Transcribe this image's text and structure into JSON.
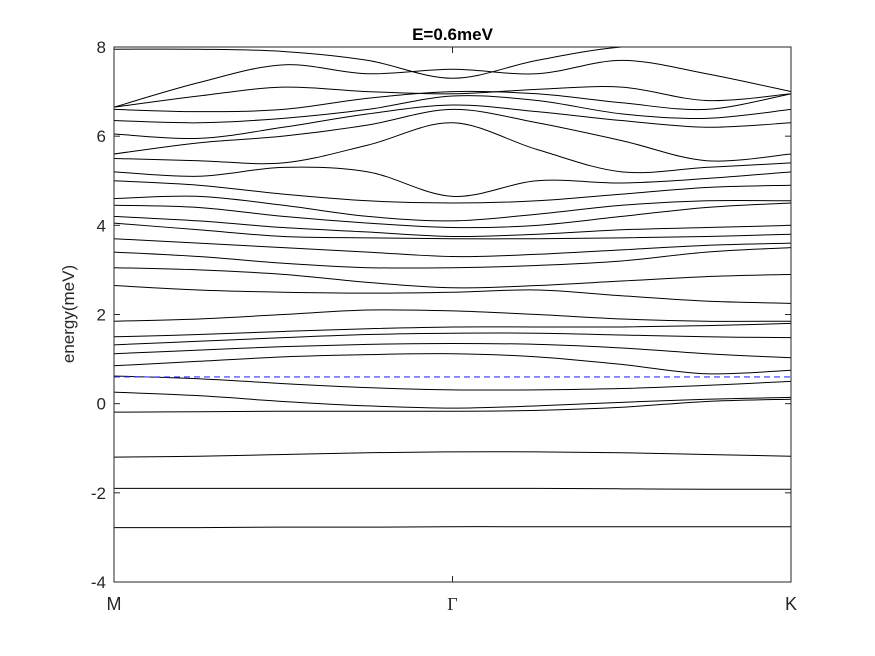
{
  "chart_data": {
    "type": "line",
    "title": "E=0.6meV",
    "xlabel": "",
    "ylabel": "energy(meV)",
    "x_ticks": [
      "M",
      "Γ",
      "K"
    ],
    "y_ticks": [
      "-4",
      "-2",
      "0",
      "2",
      "4",
      "6",
      "8"
    ],
    "xlim": [
      0,
      2
    ],
    "ylim": [
      -4,
      8
    ],
    "grid": false,
    "colors": {
      "bands": "#000000",
      "reference": "#3333ff",
      "axes": "#262626"
    },
    "x": [
      0,
      0.25,
      0.5,
      0.75,
      1.0,
      1.25,
      1.5,
      1.75,
      2.0
    ],
    "series": [
      {
        "values": [
          -2.78,
          -2.78,
          -2.77,
          -2.77,
          -2.76,
          -2.76,
          -2.76,
          -2.76,
          -2.76
        ]
      },
      {
        "values": [
          -1.9,
          -1.9,
          -1.9,
          -1.9,
          -1.9,
          -1.9,
          -1.91,
          -1.92,
          -1.92
        ]
      },
      {
        "values": [
          -1.2,
          -1.18,
          -1.14,
          -1.1,
          -1.08,
          -1.08,
          -1.1,
          -1.14,
          -1.18
        ]
      },
      {
        "values": [
          -0.19,
          -0.18,
          -0.17,
          -0.17,
          -0.17,
          -0.15,
          -0.08,
          0.05,
          0.1
        ]
      },
      {
        "values": [
          0.26,
          0.18,
          0.05,
          -0.05,
          -0.1,
          -0.05,
          0.03,
          0.1,
          0.14
        ]
      },
      {
        "values": [
          0.62,
          0.56,
          0.45,
          0.36,
          0.31,
          0.31,
          0.34,
          0.41,
          0.5
        ]
      },
      {
        "values": [
          0.85,
          0.95,
          1.05,
          1.1,
          1.12,
          1.05,
          0.88,
          0.67,
          0.75
        ]
      },
      {
        "values": [
          1.12,
          1.2,
          1.28,
          1.33,
          1.35,
          1.33,
          1.25,
          1.12,
          1.03
        ]
      },
      {
        "values": [
          1.32,
          1.4,
          1.48,
          1.55,
          1.58,
          1.58,
          1.54,
          1.5,
          1.48
        ]
      },
      {
        "values": [
          1.5,
          1.55,
          1.62,
          1.68,
          1.72,
          1.72,
          1.72,
          1.75,
          1.8
        ]
      },
      {
        "values": [
          1.85,
          1.9,
          2.0,
          2.1,
          2.08,
          2.0,
          1.9,
          1.85,
          1.85
        ]
      },
      {
        "values": [
          2.65,
          2.55,
          2.5,
          2.48,
          2.5,
          2.55,
          2.42,
          2.3,
          2.25
        ]
      },
      {
        "values": [
          3.05,
          3.0,
          2.9,
          2.72,
          2.6,
          2.65,
          2.75,
          2.85,
          2.9
        ]
      },
      {
        "values": [
          3.4,
          3.3,
          3.15,
          3.05,
          3.05,
          3.1,
          3.2,
          3.4,
          3.5
        ]
      },
      {
        "values": [
          3.7,
          3.6,
          3.5,
          3.4,
          3.3,
          3.35,
          3.45,
          3.55,
          3.6
        ]
      },
      {
        "values": [
          4.05,
          3.9,
          3.75,
          3.72,
          3.7,
          3.7,
          3.72,
          3.75,
          3.8
        ]
      },
      {
        "values": [
          4.2,
          4.1,
          3.95,
          3.85,
          3.75,
          3.8,
          3.9,
          3.95,
          4.0
        ]
      },
      {
        "values": [
          4.45,
          4.4,
          4.2,
          4.05,
          3.95,
          4.0,
          4.2,
          4.4,
          4.5
        ]
      },
      {
        "values": [
          4.6,
          4.65,
          4.45,
          4.2,
          4.1,
          4.25,
          4.45,
          4.55,
          4.55
        ]
      },
      {
        "values": [
          5.0,
          4.9,
          4.7,
          4.55,
          4.5,
          4.55,
          4.7,
          4.85,
          4.9
        ]
      },
      {
        "values": [
          5.2,
          5.1,
          5.3,
          5.2,
          4.65,
          5.0,
          4.95,
          5.05,
          5.2
        ]
      },
      {
        "values": [
          5.5,
          5.45,
          5.4,
          5.8,
          6.3,
          5.7,
          5.2,
          5.3,
          5.4
        ]
      },
      {
        "values": [
          5.6,
          5.85,
          6.0,
          6.25,
          6.6,
          6.3,
          5.9,
          5.45,
          5.6
        ]
      },
      {
        "values": [
          6.05,
          5.95,
          6.2,
          6.5,
          6.7,
          6.55,
          6.35,
          6.2,
          6.3
        ]
      },
      {
        "values": [
          6.35,
          6.3,
          6.4,
          6.6,
          6.9,
          6.8,
          6.5,
          6.4,
          6.6
        ]
      },
      {
        "values": [
          6.6,
          6.55,
          6.6,
          6.85,
          7.0,
          6.95,
          6.75,
          6.6,
          6.95
        ]
      },
      {
        "values": [
          6.65,
          6.9,
          7.1,
          7.0,
          6.95,
          7.05,
          7.1,
          6.8,
          6.95
        ]
      },
      {
        "values": [
          6.65,
          7.2,
          7.6,
          7.4,
          7.5,
          7.4,
          7.7,
          7.4,
          7.0
        ]
      },
      {
        "values": [
          7.95,
          7.95,
          7.9,
          7.7,
          7.3,
          7.7,
          8.0,
          8.0,
          8.0
        ]
      }
    ],
    "reference_line": {
      "y": 0.6,
      "style": "dashed"
    }
  }
}
